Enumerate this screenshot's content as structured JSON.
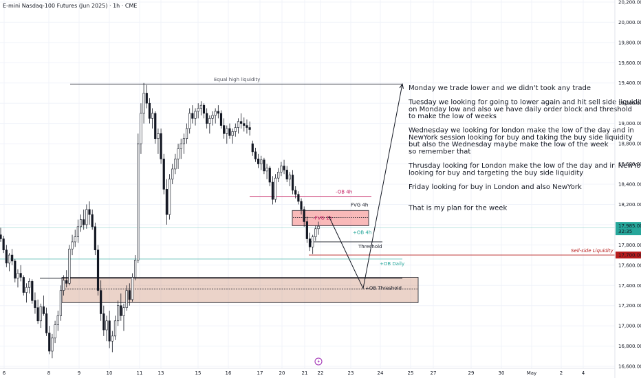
{
  "chart_data": {
    "type": "candlestick",
    "title": "E-mini Nasdaq-100 Futures (Jun 2025) · 1h · CME",
    "y_axis": {
      "ticks": [
        "20,200.00",
        "20,000.00",
        "19,800.00",
        "19,600.00",
        "19,400.00",
        "19,200.00",
        "19,000.00",
        "18,800.00",
        "18,600.00",
        "18,400.00",
        "18,200.00",
        "18,000.00",
        "17,800.00",
        "17,600.00",
        "17,400.00",
        "17,200.00",
        "17,000.00",
        "16,800.00",
        "16,600.00"
      ],
      "range": [
        16580,
        20220
      ]
    },
    "x_axis": {
      "ticks": [
        "6",
        "8",
        "9",
        "10",
        "11",
        "13",
        "15",
        "16",
        "17",
        "20",
        "21",
        "22",
        "23",
        "24",
        "25",
        "27",
        "29",
        "30",
        "May",
        "2",
        "4"
      ]
    },
    "last_price": {
      "label": "17,985.00",
      "countdown": "32:35",
      "color": "#26a69a"
    },
    "level_label": {
      "label": "17,700.00",
      "color": "#b71c1c"
    },
    "candles": [
      [
        17900,
        17970,
        17830,
        17860
      ],
      [
        17860,
        17890,
        17720,
        17750
      ],
      [
        17750,
        17800,
        17580,
        17620
      ],
      [
        17620,
        17720,
        17540,
        17700
      ],
      [
        17700,
        17760,
        17600,
        17640
      ],
      [
        17640,
        17660,
        17430,
        17470
      ],
      [
        17470,
        17560,
        17380,
        17520
      ],
      [
        17520,
        17600,
        17440,
        17480
      ],
      [
        17480,
        17500,
        17300,
        17330
      ],
      [
        17330,
        17420,
        17230,
        17380
      ],
      [
        17380,
        17470,
        17320,
        17440
      ],
      [
        17440,
        17460,
        17220,
        17250
      ],
      [
        17250,
        17330,
        17120,
        17180
      ],
      [
        17180,
        17260,
        17020,
        17050
      ],
      [
        17050,
        17220,
        16980,
        17190
      ],
      [
        17190,
        17300,
        17100,
        17120
      ],
      [
        17120,
        17180,
        16900,
        16930
      ],
      [
        16930,
        17000,
        16720,
        16750
      ],
      [
        16750,
        16920,
        16680,
        16880
      ],
      [
        16880,
        17050,
        16830,
        17010
      ],
      [
        17010,
        17150,
        16950,
        17100
      ],
      [
        17100,
        17400,
        17050,
        17350
      ],
      [
        17350,
        17500,
        17300,
        17450
      ],
      [
        17450,
        17550,
        17380,
        17420
      ],
      [
        17420,
        17800,
        17400,
        17760
      ],
      [
        17760,
        17900,
        17700,
        17830
      ],
      [
        17830,
        17950,
        17780,
        17880
      ],
      [
        17880,
        18050,
        17820,
        17980
      ],
      [
        17980,
        18100,
        17930,
        18050
      ],
      [
        18050,
        18150,
        17950,
        18000
      ],
      [
        18000,
        18200,
        17960,
        18150
      ],
      [
        18150,
        18230,
        18000,
        18100
      ],
      [
        18100,
        18150,
        17950,
        17980
      ],
      [
        17980,
        18020,
        17700,
        17750
      ],
      [
        17750,
        17800,
        17300,
        17350
      ],
      [
        17350,
        17450,
        17050,
        17120
      ],
      [
        17120,
        17200,
        16900,
        16960
      ],
      [
        16960,
        17100,
        16850,
        17050
      ],
      [
        17050,
        17150,
        16780,
        16850
      ],
      [
        16850,
        16950,
        16740,
        16900
      ],
      [
        16900,
        17100,
        16860,
        17050
      ],
      [
        17050,
        17250,
        17000,
        17200
      ],
      [
        17200,
        17320,
        17050,
        17100
      ],
      [
        17100,
        17220,
        16950,
        17180
      ],
      [
        17180,
        17400,
        17150,
        17350
      ],
      [
        17350,
        17420,
        17200,
        17260
      ],
      [
        17260,
        17520,
        17240,
        17480
      ],
      [
        17480,
        17700,
        17450,
        17650
      ],
      [
        17650,
        18900,
        17620,
        18800
      ],
      [
        18800,
        19200,
        18700,
        19100
      ],
      [
        19100,
        19400,
        19000,
        19300
      ],
      [
        19300,
        19380,
        19150,
        19200
      ],
      [
        19200,
        19250,
        19000,
        19050
      ],
      [
        19050,
        19150,
        18950,
        19100
      ],
      [
        19100,
        19120,
        18800,
        18850
      ],
      [
        18850,
        18950,
        18700,
        18900
      ],
      [
        18900,
        18950,
        18600,
        18650
      ],
      [
        18650,
        18700,
        18300,
        18350
      ],
      [
        18350,
        18450,
        18000,
        18100
      ],
      [
        18100,
        18500,
        18050,
        18450
      ],
      [
        18450,
        18600,
        18400,
        18550
      ],
      [
        18550,
        18700,
        18500,
        18650
      ],
      [
        18650,
        18800,
        18550,
        18750
      ],
      [
        18750,
        18850,
        18650,
        18800
      ],
      [
        18800,
        18900,
        18700,
        18850
      ],
      [
        18850,
        19000,
        18800,
        18950
      ],
      [
        18950,
        19150,
        18900,
        19100
      ],
      [
        19100,
        19180,
        19000,
        19050
      ],
      [
        19050,
        19150,
        18980,
        19120
      ],
      [
        19120,
        19200,
        19050,
        19150
      ],
      [
        19150,
        19220,
        19080,
        19180
      ],
      [
        19180,
        19200,
        19050,
        19100
      ],
      [
        19100,
        19150,
        18950,
        19000
      ],
      [
        19000,
        19080,
        18900,
        19050
      ],
      [
        19050,
        19120,
        18980,
        19080
      ],
      [
        19080,
        19150,
        19000,
        19120
      ],
      [
        19120,
        19180,
        19050,
        19100
      ],
      [
        19100,
        19130,
        18950,
        18980
      ],
      [
        18980,
        19050,
        18850,
        18900
      ],
      [
        18900,
        18980,
        18800,
        18950
      ],
      [
        18950,
        19000,
        18850,
        18880
      ],
      [
        18880,
        18950,
        18800,
        18920
      ],
      [
        18920,
        19000,
        18870,
        18960
      ],
      [
        18960,
        19050,
        18900,
        19020
      ],
      [
        19020,
        19100,
        18950,
        19000
      ],
      [
        19000,
        19060,
        18920,
        18980
      ],
      [
        18980,
        19040,
        18900,
        18960
      ],
      [
        18960,
        19020,
        18880,
        18940
      ],
      [
        18800,
        18830,
        18680,
        18720
      ],
      [
        18720,
        18760,
        18620,
        18650
      ],
      [
        18650,
        18700,
        18560,
        18600
      ],
      [
        18600,
        18680,
        18540,
        18640
      ],
      [
        18640,
        18660,
        18500,
        18530
      ],
      [
        18530,
        18600,
        18450,
        18560
      ],
      [
        18560,
        18580,
        18380,
        18420
      ],
      [
        18420,
        18480,
        18200,
        18250
      ],
      [
        18250,
        18500,
        18220,
        18460
      ],
      [
        18460,
        18560,
        18420,
        18520
      ],
      [
        18520,
        18620,
        18480,
        18580
      ],
      [
        18580,
        18640,
        18500,
        18540
      ],
      [
        18540,
        18580,
        18420,
        18450
      ],
      [
        18450,
        18520,
        18380,
        18490
      ],
      [
        18490,
        18540,
        18300,
        18340
      ],
      [
        18340,
        18380,
        18260,
        18300
      ],
      [
        18300,
        18330,
        18200,
        18230
      ],
      [
        18230,
        18260,
        18100,
        18150
      ],
      [
        18150,
        18180,
        17980,
        18030
      ],
      [
        18030,
        18080,
        17820,
        17860
      ],
      [
        17860,
        17920,
        17740,
        17780
      ],
      [
        17780,
        17900,
        17710,
        17880
      ],
      [
        17880,
        17990,
        17840,
        17960
      ],
      [
        17960,
        18030,
        17900,
        17985
      ]
    ],
    "levels": [
      {
        "name": "Equal high liquidity",
        "price": 19390,
        "color": "#131722"
      },
      {
        "name": "-OB 4h",
        "price": 18280,
        "color": "#c2185b"
      },
      {
        "name": "+OB 4h",
        "price": 17970,
        "color": "#26a69a"
      },
      {
        "name": "Threshold",
        "price": 17830,
        "color": "#131722"
      },
      {
        "name": "Sell-side Liquidity",
        "price": 17700,
        "color": "#b71c1c"
      },
      {
        "name": "+OB Daily",
        "price": 17660,
        "color": "#26a69a"
      },
      {
        "name": "+OB Threshold",
        "price": 17365,
        "color": "#131722"
      }
    ],
    "zones": [
      {
        "name": "FVG 4h",
        "price_top": 18140,
        "price_bottom": 17990,
        "color": "#ef5350"
      },
      {
        "name": "+OB Daily zone",
        "price_top": 17480,
        "price_bottom": 17230,
        "color": "#cd9178"
      }
    ],
    "fvg_1h_label": "-FVG 1h",
    "path": [
      [
        18085,
        18010
      ],
      [
        17370,
        17370
      ],
      [
        19390,
        19390
      ]
    ],
    "legend": "none",
    "grid": true
  },
  "plan_text": [
    "Monday we trade lower and we didn't took any trade",
    "",
    "Tuesday we looking for going to lower again and hit sell side liquidity",
    "on Monday low and also we have daily order block and threshold",
    "to make the low of weeks",
    "",
    "Wednesday we looking for london make the low of the day and in",
    "NewYork session looking for buy and taking the buy side liquidity",
    "but also the Wednesday maybe make the low of the week",
    "so remember that",
    "",
    "Thrusday looking for London make the low of the day and in NewYork",
    "looking for buy and targeting the buy side liquidity",
    "",
    "Friday looking for buy in London and also NewYork",
    "",
    "",
    "That is my plan for the week"
  ],
  "colors": {
    "up": "#131722",
    "down": "#131722",
    "up_fill": "#ffffff",
    "grid": "#f0f3fa",
    "event_icon": "#9c27b0"
  }
}
